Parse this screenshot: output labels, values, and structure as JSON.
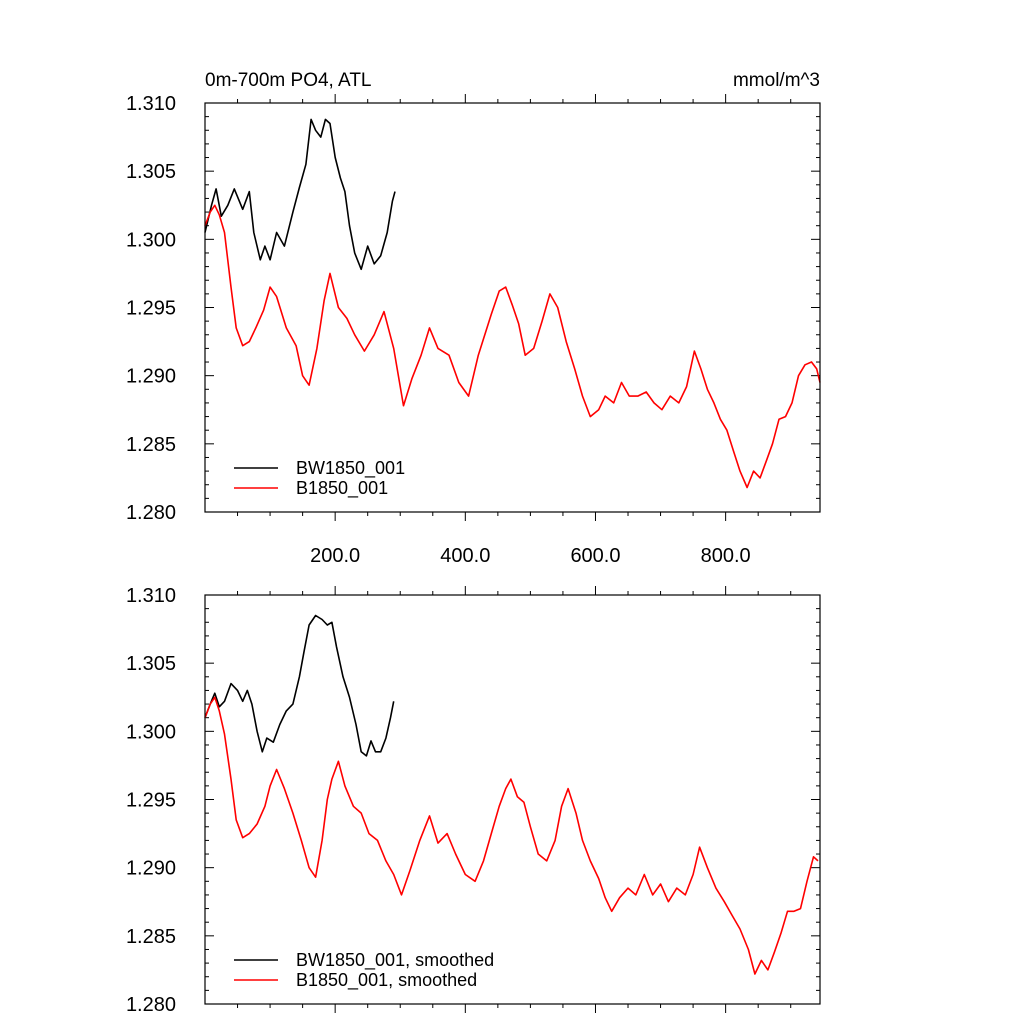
{
  "chart_data": [
    {
      "type": "line",
      "title_left": "0m-700m PO4, ATL",
      "title_right": "mmol/m^3",
      "xlim": [
        0,
        945
      ],
      "ylim": [
        1.28,
        1.31
      ],
      "ytick_labels": [
        "1.310",
        "1.305",
        "1.300",
        "1.295",
        "1.290",
        "1.285",
        "1.280"
      ],
      "xtick_labels": [
        "200.0",
        "400.0",
        "600.0",
        "800.0"
      ],
      "legend_position": "bottom-left",
      "series": [
        {
          "name": "BW1850_001",
          "color": "#000000",
          "x": [
            0,
            10,
            17,
            25,
            35,
            45,
            58,
            68,
            75,
            85,
            92,
            100,
            110,
            122,
            135,
            145,
            155,
            163,
            170,
            178,
            185,
            192,
            200,
            208,
            215,
            222,
            230,
            240,
            250,
            260,
            270,
            280,
            288,
            292
          ],
          "y": [
            1.3005,
            1.3025,
            1.3037,
            1.3017,
            1.3025,
            1.3037,
            1.3022,
            1.3035,
            1.3005,
            1.2985,
            1.2995,
            1.2985,
            1.3005,
            1.2995,
            1.302,
            1.3038,
            1.3055,
            1.3088,
            1.308,
            1.3075,
            1.3088,
            1.3085,
            1.306,
            1.3045,
            1.3035,
            1.301,
            1.299,
            1.2978,
            1.2995,
            1.2982,
            1.2988,
            1.3005,
            1.3028,
            1.3035
          ]
        },
        {
          "name": "B1850_001",
          "color": "#ff0000",
          "x": [
            0,
            8,
            15,
            22,
            30,
            40,
            48,
            58,
            68,
            78,
            90,
            100,
            110,
            125,
            140,
            150,
            160,
            172,
            183,
            192,
            205,
            218,
            230,
            245,
            260,
            275,
            290,
            305,
            318,
            332,
            345,
            358,
            375,
            390,
            405,
            420,
            440,
            452,
            462,
            472,
            482,
            492,
            505,
            518,
            530,
            542,
            555,
            568,
            580,
            592,
            605,
            615,
            628,
            640,
            652,
            665,
            678,
            690,
            702,
            715,
            728,
            740,
            752,
            762,
            772,
            782,
            792,
            802,
            812,
            822,
            833,
            843,
            853,
            863,
            872,
            882,
            892,
            902,
            912,
            922,
            932,
            940,
            945
          ],
          "y": [
            1.301,
            1.302,
            1.3025,
            1.3018,
            1.3005,
            1.2965,
            1.2935,
            1.2922,
            1.2925,
            1.2935,
            1.2948,
            1.2965,
            1.2958,
            1.2935,
            1.2922,
            1.29,
            1.2893,
            1.292,
            1.2955,
            1.2975,
            1.295,
            1.2942,
            1.293,
            1.2918,
            1.293,
            1.2947,
            1.292,
            1.2878,
            1.2898,
            1.2915,
            1.2935,
            1.292,
            1.2915,
            1.2895,
            1.2885,
            1.2915,
            1.2945,
            1.2962,
            1.2965,
            1.2952,
            1.2938,
            1.2915,
            1.292,
            1.294,
            1.296,
            1.295,
            1.2925,
            1.2905,
            1.2885,
            1.287,
            1.2875,
            1.2885,
            1.288,
            1.2895,
            1.2885,
            1.2885,
            1.2888,
            1.288,
            1.2875,
            1.2885,
            1.288,
            1.2892,
            1.2918,
            1.2905,
            1.289,
            1.288,
            1.2868,
            1.286,
            1.2845,
            1.283,
            1.2818,
            1.283,
            1.2825,
            1.2838,
            1.285,
            1.2868,
            1.287,
            1.288,
            1.29,
            1.2908,
            1.291,
            1.2905,
            1.2895
          ]
        }
      ]
    },
    {
      "type": "line",
      "xlim": [
        0,
        945
      ],
      "ylim": [
        1.28,
        1.31
      ],
      "ytick_labels": [
        "1.310",
        "1.305",
        "1.300",
        "1.295",
        "1.290",
        "1.285",
        "1.280"
      ],
      "legend_position": "bottom-left",
      "series": [
        {
          "name": "BW1850_001, smoothed",
          "color": "#000000",
          "x": [
            0,
            8,
            15,
            22,
            30,
            40,
            50,
            58,
            65,
            72,
            80,
            88,
            95,
            105,
            115,
            125,
            135,
            145,
            152,
            160,
            170,
            180,
            188,
            195,
            202,
            212,
            222,
            232,
            240,
            248,
            255,
            262,
            270,
            278,
            285,
            290
          ],
          "y": [
            1.301,
            1.302,
            1.3028,
            1.3018,
            1.3022,
            1.3035,
            1.303,
            1.3022,
            1.303,
            1.302,
            1.3,
            1.2985,
            1.2995,
            1.2992,
            1.3005,
            1.3015,
            1.302,
            1.304,
            1.3058,
            1.3078,
            1.3085,
            1.3082,
            1.3078,
            1.308,
            1.3062,
            1.304,
            1.3025,
            1.3005,
            1.2985,
            1.2982,
            1.2993,
            1.2985,
            1.2985,
            1.2995,
            1.301,
            1.3022
          ]
        },
        {
          "name": "B1850_001, smoothed",
          "color": "#ff0000",
          "x": [
            0,
            8,
            15,
            22,
            30,
            40,
            48,
            58,
            68,
            80,
            92,
            100,
            110,
            122,
            135,
            148,
            160,
            170,
            180,
            188,
            195,
            205,
            215,
            228,
            240,
            252,
            265,
            278,
            290,
            302,
            315,
            330,
            345,
            358,
            372,
            385,
            400,
            415,
            428,
            440,
            452,
            462,
            470,
            480,
            490,
            500,
            512,
            525,
            538,
            548,
            558,
            570,
            580,
            592,
            605,
            615,
            625,
            637,
            650,
            662,
            675,
            688,
            700,
            712,
            725,
            738,
            750,
            760,
            772,
            785,
            798,
            810,
            822,
            835,
            845,
            855,
            865,
            875,
            885,
            895,
            905,
            915,
            925,
            935,
            942
          ],
          "y": [
            1.301,
            1.302,
            1.3025,
            1.3015,
            1.2998,
            1.2965,
            1.2935,
            1.2922,
            1.2925,
            1.2932,
            1.2945,
            1.296,
            1.2972,
            1.2958,
            1.294,
            1.292,
            1.29,
            1.2893,
            1.292,
            1.295,
            1.2965,
            1.2978,
            1.296,
            1.2945,
            1.294,
            1.2925,
            1.292,
            1.2905,
            1.2895,
            1.288,
            1.2898,
            1.292,
            1.2938,
            1.2918,
            1.2925,
            1.291,
            1.2895,
            1.289,
            1.2905,
            1.2925,
            1.2945,
            1.2958,
            1.2965,
            1.2952,
            1.2948,
            1.293,
            1.291,
            1.2905,
            1.292,
            1.2945,
            1.2958,
            1.294,
            1.292,
            1.2905,
            1.2892,
            1.2878,
            1.2868,
            1.2878,
            1.2885,
            1.288,
            1.2895,
            1.288,
            1.2888,
            1.2875,
            1.2885,
            1.288,
            1.2895,
            1.2915,
            1.29,
            1.2885,
            1.2875,
            1.2865,
            1.2855,
            1.284,
            1.2822,
            1.2832,
            1.2825,
            1.2838,
            1.2852,
            1.2868,
            1.2868,
            1.287,
            1.289,
            1.2908,
            1.2905
          ]
        }
      ]
    }
  ]
}
